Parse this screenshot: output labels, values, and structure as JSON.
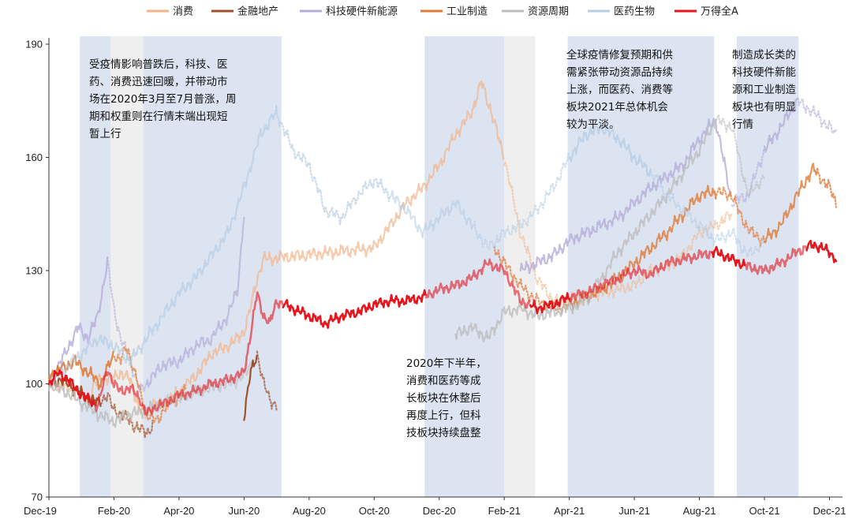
{
  "chart_data": {
    "type": "line",
    "title": "",
    "xlabel": "",
    "ylabel": "",
    "ylim": [
      70,
      190
    ],
    "yticks": [
      70,
      100,
      130,
      160,
      190
    ],
    "xticks": [
      {
        "t": 0,
        "label": "Dec-19"
      },
      {
        "t": 2,
        "label": "Feb-20"
      },
      {
        "t": 4,
        "label": "Apr-20"
      },
      {
        "t": 6,
        "label": "Jun-20"
      },
      {
        "t": 8,
        "label": "Aug-20"
      },
      {
        "t": 10,
        "label": "Oct-20"
      },
      {
        "t": 12,
        "label": "Dec-20"
      },
      {
        "t": 14,
        "label": "Feb-21"
      },
      {
        "t": 16,
        "label": "Apr-21"
      },
      {
        "t": 18,
        "label": "Jun-21"
      },
      {
        "t": 20,
        "label": "Aug-21"
      },
      {
        "t": 22,
        "label": "Oct-21"
      },
      {
        "t": 24,
        "label": "Dec-21"
      }
    ],
    "xlim": [
      0,
      24.4
    ],
    "legend_position": "top",
    "series": [
      {
        "name": "消费",
        "color": "#F2B58A",
        "width": 2.2,
        "x": [
          0,
          0.5,
          0.9,
          1.2,
          1.4,
          1.7,
          1.9,
          2.2,
          2.5,
          2.8,
          3.0,
          3.2,
          3.5,
          4.0,
          4.5,
          5.0,
          5.5,
          5.8,
          6.0,
          6.2,
          6.4,
          6.6,
          10.0,
          10.5,
          11.0,
          11.5,
          12.0,
          12.5,
          13.0,
          13.3,
          13.6,
          14.0,
          14.5,
          15.0,
          15.5,
          16.0,
          16.5,
          17.0,
          17.5,
          18.0,
          18.5,
          19.0,
          19.5,
          20.0,
          20.5,
          21.0
        ],
        "y": [
          100,
          99,
          98,
          95,
          100,
          102,
          101,
          103,
          101,
          93,
          92,
          95,
          94,
          98,
          102,
          108,
          110,
          112,
          114,
          120,
          128,
          133,
          136,
          142,
          148,
          152,
          158,
          166,
          172,
          180,
          172,
          160,
          140,
          128,
          122,
          122,
          123,
          124,
          125,
          126,
          130,
          131,
          134,
          140,
          142,
          145
        ],
        "style": [
          {
            "from": 0,
            "to": 14.0,
            "dash": false,
            "alpha": 0.7
          },
          {
            "from": 14.0,
            "to": 21.0,
            "dash": true,
            "alpha": 0.6
          }
        ]
      },
      {
        "name": "金融地产",
        "color": "#A0522D",
        "width": 2.2,
        "x": [
          0,
          0.3,
          0.6,
          0.9,
          1.2,
          1.5,
          1.8,
          2.0,
          2.2,
          2.4,
          2.6,
          2.8,
          3.0,
          3.2,
          6.0,
          6.2,
          6.4,
          6.6,
          6.8,
          7.0
        ],
        "y": [
          100,
          101,
          100,
          98,
          96,
          95,
          97,
          93,
          92,
          91,
          89,
          88,
          87,
          89,
          91,
          103,
          108,
          100,
          96,
          94
        ],
        "style": [
          {
            "from": 0,
            "to": 1.6,
            "dash": false,
            "alpha": 1.0
          },
          {
            "from": 1.6,
            "to": 3.2,
            "dash": true,
            "alpha": 0.7
          },
          {
            "from": 6.0,
            "to": 6.4,
            "dash": false,
            "alpha": 1.0
          },
          {
            "from": 6.4,
            "to": 7.0,
            "dash": true,
            "alpha": 0.7
          }
        ]
      },
      {
        "name": "科技硬件新能源",
        "color": "#B5ADD8",
        "width": 2.2,
        "x": [
          0,
          0.5,
          0.9,
          1.2,
          1.5,
          1.8,
          2.0,
          2.2,
          2.5,
          2.8,
          3.0,
          3.5,
          4.0,
          4.5,
          5.0,
          5.5,
          5.8,
          6.0,
          14.5,
          15.0,
          15.5,
          16.0,
          16.5,
          17.0,
          17.5,
          18.0,
          18.5,
          19.0,
          19.5,
          20.0,
          20.5,
          21.0,
          21.5,
          22.0,
          22.5,
          23.0,
          23.5,
          24.0,
          24.2
        ],
        "y": [
          100,
          108,
          115,
          112,
          118,
          132,
          120,
          112,
          106,
          98,
          100,
          105,
          106,
          110,
          112,
          118,
          125,
          145,
          130,
          132,
          134,
          138,
          140,
          142,
          144,
          148,
          152,
          155,
          158,
          165,
          170,
          148,
          150,
          162,
          168,
          175,
          172,
          168,
          166
        ],
        "style": [
          {
            "from": 0,
            "to": 1.8,
            "dash": false,
            "alpha": 0.8
          },
          {
            "from": 1.8,
            "to": 3.0,
            "dash": true,
            "alpha": 0.6
          },
          {
            "from": 3.0,
            "to": 6.0,
            "dash": false,
            "alpha": 0.7
          },
          {
            "from": 14.5,
            "to": 21.0,
            "dash": false,
            "alpha": 0.8
          },
          {
            "from": 21.0,
            "to": 22.0,
            "dash": true,
            "alpha": 0.6
          },
          {
            "from": 22.0,
            "to": 23.0,
            "dash": false,
            "alpha": 0.8
          },
          {
            "from": 23.0,
            "to": 24.2,
            "dash": true,
            "alpha": 0.6
          }
        ]
      },
      {
        "name": "工业制造",
        "color": "#E07B39",
        "width": 2.2,
        "x": [
          0,
          0.4,
          0.8,
          1.2,
          1.6,
          2.0,
          2.2,
          2.4,
          2.6,
          2.8,
          3.0,
          3.3,
          3.6,
          3.9,
          4.2,
          13.7,
          14.0,
          14.5,
          15.0,
          15.5,
          16.0,
          16.5,
          17.0,
          17.5,
          18.0,
          18.5,
          19.0,
          19.5,
          20.0,
          20.5,
          21.0,
          21.3,
          21.6,
          22.0,
          22.5,
          23.0,
          23.5,
          24.0,
          24.2
        ],
        "y": [
          102,
          104,
          106,
          103,
          100,
          108,
          106,
          110,
          104,
          98,
          92,
          90,
          94,
          96,
          98,
          136,
          132,
          126,
          122,
          120,
          121,
          123,
          125,
          128,
          132,
          136,
          140,
          145,
          150,
          151,
          150,
          144,
          140,
          138,
          142,
          150,
          157,
          152,
          148
        ],
        "style": [
          {
            "from": 0,
            "to": 2.0,
            "dash": false,
            "alpha": 0.9
          },
          {
            "from": 2.0,
            "to": 4.2,
            "dash": true,
            "alpha": 0.7
          },
          {
            "from": 13.7,
            "to": 16.0,
            "dash": true,
            "alpha": 0.7
          },
          {
            "from": 16.0,
            "to": 20.5,
            "dash": false,
            "alpha": 0.8
          },
          {
            "from": 20.5,
            "to": 22.0,
            "dash": true,
            "alpha": 0.7
          },
          {
            "from": 22.0,
            "to": 23.6,
            "dash": false,
            "alpha": 0.8
          },
          {
            "from": 23.6,
            "to": 24.2,
            "dash": true,
            "alpha": 0.8
          }
        ]
      },
      {
        "name": "资源周期",
        "color": "#BDBDBD",
        "width": 2.2,
        "x": [
          0,
          0.5,
          1.0,
          1.5,
          2.0,
          2.5,
          3.0,
          3.5,
          4.0,
          4.5,
          5.0,
          5.5,
          6.0,
          6.2,
          12.5,
          13.0,
          13.5,
          14.0,
          14.5,
          15.0,
          15.5,
          16.0,
          16.5,
          17.0,
          17.5,
          18.0,
          18.5,
          19.0,
          19.5,
          20.0,
          20.5,
          21.0,
          21.5,
          22.0
        ],
        "y": [
          100,
          98,
          95,
          92,
          90,
          92,
          93,
          95,
          96,
          98,
          99,
          100,
          102,
          105,
          113,
          115,
          112,
          119,
          120,
          118,
          119,
          120,
          122,
          128,
          135,
          140,
          145,
          150,
          156,
          162,
          170,
          168,
          150,
          155
        ],
        "style": [
          {
            "from": 0,
            "to": 3.5,
            "dash": false,
            "alpha": 0.8
          },
          {
            "from": 3.5,
            "to": 6.2,
            "dash": false,
            "alpha": 0.6
          },
          {
            "from": 12.5,
            "to": 20.5,
            "dash": false,
            "alpha": 0.8
          },
          {
            "from": 20.5,
            "to": 22.0,
            "dash": true,
            "alpha": 0.6
          }
        ]
      },
      {
        "name": "医药生物",
        "color": "#B8CDE4",
        "width": 2.2,
        "x": [
          0,
          0.5,
          1.0,
          1.5,
          2.0,
          2.5,
          3.0,
          3.5,
          4.0,
          4.5,
          5.0,
          5.5,
          6.0,
          6.5,
          7.0,
          7.5,
          8.0,
          8.5,
          9.0,
          9.5,
          10.0,
          10.5,
          11.0,
          11.5,
          12.0,
          12.5,
          13.0,
          13.5,
          14.0,
          14.5,
          15.0,
          15.5,
          16.0,
          16.5,
          17.0,
          17.5,
          18.0,
          18.5,
          19.0,
          19.5,
          20.0,
          20.5,
          21.0,
          21.5,
          22.0
        ],
        "y": [
          100,
          104,
          108,
          112,
          110,
          106,
          112,
          118,
          124,
          128,
          134,
          140,
          152,
          166,
          172,
          162,
          158,
          146,
          144,
          150,
          154,
          150,
          146,
          140,
          144,
          148,
          142,
          136,
          140,
          142,
          146,
          152,
          160,
          166,
          168,
          165,
          160,
          156,
          150,
          146,
          142,
          138,
          140,
          134,
          138
        ],
        "style": [
          {
            "from": 0,
            "to": 7.0,
            "dash": false,
            "alpha": 0.7
          },
          {
            "from": 7.0,
            "to": 10.5,
            "dash": true,
            "alpha": 0.7
          },
          {
            "from": 10.5,
            "to": 13.0,
            "dash": false,
            "alpha": 0.6
          },
          {
            "from": 13.0,
            "to": 16.0,
            "dash": true,
            "alpha": 0.6
          },
          {
            "from": 16.0,
            "to": 18.5,
            "dash": false,
            "alpha": 0.8
          },
          {
            "from": 18.5,
            "to": 22.0,
            "dash": true,
            "alpha": 0.6
          }
        ]
      },
      {
        "name": "万得全A",
        "color": "#E4161E",
        "width": 2.6,
        "x": [
          0,
          0.3,
          0.6,
          0.9,
          1.2,
          1.5,
          1.8,
          2.0,
          2.2,
          2.5,
          2.8,
          3.0,
          3.3,
          3.6,
          4.0,
          4.5,
          5.0,
          5.5,
          6.0,
          6.2,
          6.4,
          6.6,
          6.8,
          7.0,
          7.5,
          8.0,
          8.5,
          9.0,
          9.5,
          10.0,
          10.5,
          11.0,
          11.5,
          12.0,
          12.5,
          13.0,
          13.5,
          14.0,
          14.5,
          15.0,
          15.5,
          16.0,
          16.5,
          17.0,
          17.5,
          18.0,
          18.5,
          19.0,
          19.5,
          20.0,
          20.5,
          21.0,
          21.5,
          22.0,
          22.5,
          23.0,
          23.5,
          24.0,
          24.2
        ],
        "y": [
          100,
          103,
          101,
          98,
          96,
          94,
          104,
          100,
          98,
          99,
          96,
          92,
          94,
          95,
          97,
          98,
          100,
          101,
          103,
          113,
          124,
          118,
          116,
          122,
          120,
          118,
          116,
          118,
          119,
          121,
          122,
          122,
          123,
          125,
          126,
          128,
          132,
          130,
          122,
          120,
          121,
          123,
          124,
          126,
          128,
          130,
          129,
          132,
          133,
          134,
          135,
          133,
          131,
          130,
          132,
          135,
          137,
          135,
          133
        ],
        "style": [
          {
            "from": 0,
            "to": 1.4,
            "dash": false,
            "alpha": 1.0
          },
          {
            "from": 1.4,
            "to": 7.2,
            "dash": false,
            "alpha": 0.6
          },
          {
            "from": 7.2,
            "to": 11.6,
            "dash": false,
            "alpha": 1.0
          },
          {
            "from": 11.6,
            "to": 14.8,
            "dash": false,
            "alpha": 0.6
          },
          {
            "from": 14.8,
            "to": 16.0,
            "dash": false,
            "alpha": 1.0
          },
          {
            "from": 16.0,
            "to": 20.4,
            "dash": false,
            "alpha": 0.6
          },
          {
            "from": 20.4,
            "to": 21.4,
            "dash": false,
            "alpha": 1.0
          },
          {
            "from": 21.4,
            "to": 23.3,
            "dash": false,
            "alpha": 0.6
          },
          {
            "from": 23.3,
            "to": 24.2,
            "dash": false,
            "alpha": 1.0
          }
        ]
      }
    ],
    "bands": [
      {
        "from": 0.95,
        "to": 1.9,
        "color": "#DCE4F2"
      },
      {
        "from": 1.9,
        "to": 2.9,
        "color": "#EFEFEF"
      },
      {
        "from": 2.9,
        "to": 7.15,
        "color": "#DCE4F2"
      },
      {
        "from": 11.55,
        "to": 14.0,
        "color": "#DCE4F2"
      },
      {
        "from": 14.0,
        "to": 14.95,
        "color": "#EFEFEF"
      },
      {
        "from": 15.95,
        "to": 20.45,
        "color": "#DCE4F2"
      },
      {
        "from": 21.15,
        "to": 23.05,
        "color": "#DCE4F2"
      }
    ],
    "annotations": [
      {
        "lines": [
          "受疫情影响普跌后，科技、医",
          "药、消费迅速回暖，并带动市",
          "场在2020年3月至7月普涨，周",
          "期和权重则在行情末端出现短",
          "暂上行"
        ]
      },
      {
        "lines": [
          "2020年下半年，",
          "消费和医药等成",
          "长板块在休整后",
          "再度上行，但科",
          "技板块持续盘整"
        ]
      },
      {
        "lines": [
          "全球疫情修复预期和供",
          "需紧张带动资源品持续",
          "上涨，而医药、消费等",
          "板块2021年总体机会",
          "较为平淡。"
        ]
      },
      {
        "lines": [
          "制造成长类的",
          "科技硬件新能",
          "源和工业制造",
          "板块也有明显",
          "行情"
        ]
      }
    ]
  }
}
